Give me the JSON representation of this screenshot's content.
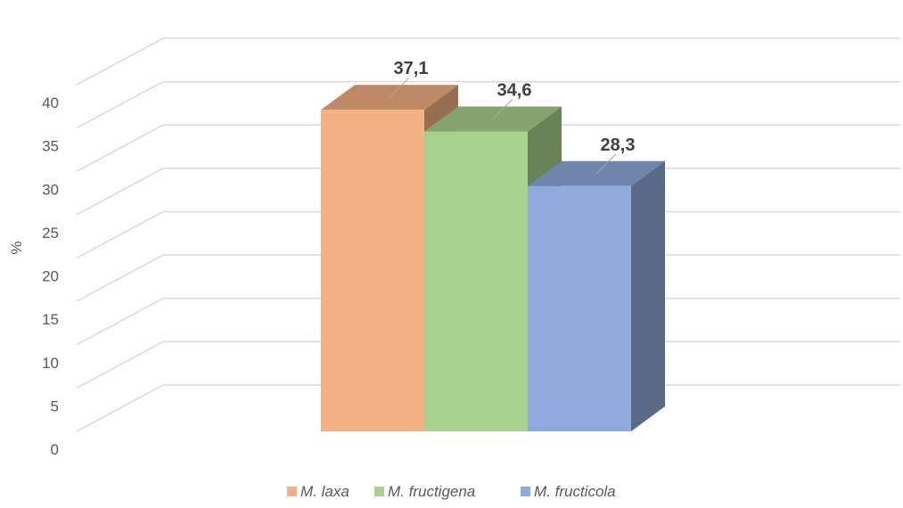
{
  "chart_data": {
    "type": "bar",
    "style": "3d-clustered-column",
    "categories": [
      ""
    ],
    "series": [
      {
        "name": "M. laxa",
        "values": [
          37.1
        ],
        "label": "37,1",
        "color": "#F4B183"
      },
      {
        "name": "M. fructigena",
        "values": [
          34.6
        ],
        "label": "34,6",
        "color": "#A9D18E"
      },
      {
        "name": "M. fructicola",
        "values": [
          28.3
        ],
        "label": "28,3",
        "color": "#8FAADC"
      }
    ],
    "ylabel": "%",
    "ylim": [
      0,
      40
    ],
    "yticks": [
      "0",
      "5",
      "10",
      "15",
      "20",
      "25",
      "30",
      "35",
      "40"
    ],
    "ytick_values": [
      0,
      5,
      10,
      15,
      20,
      25,
      30,
      35,
      40
    ],
    "grid": true,
    "legend": "bottom"
  }
}
